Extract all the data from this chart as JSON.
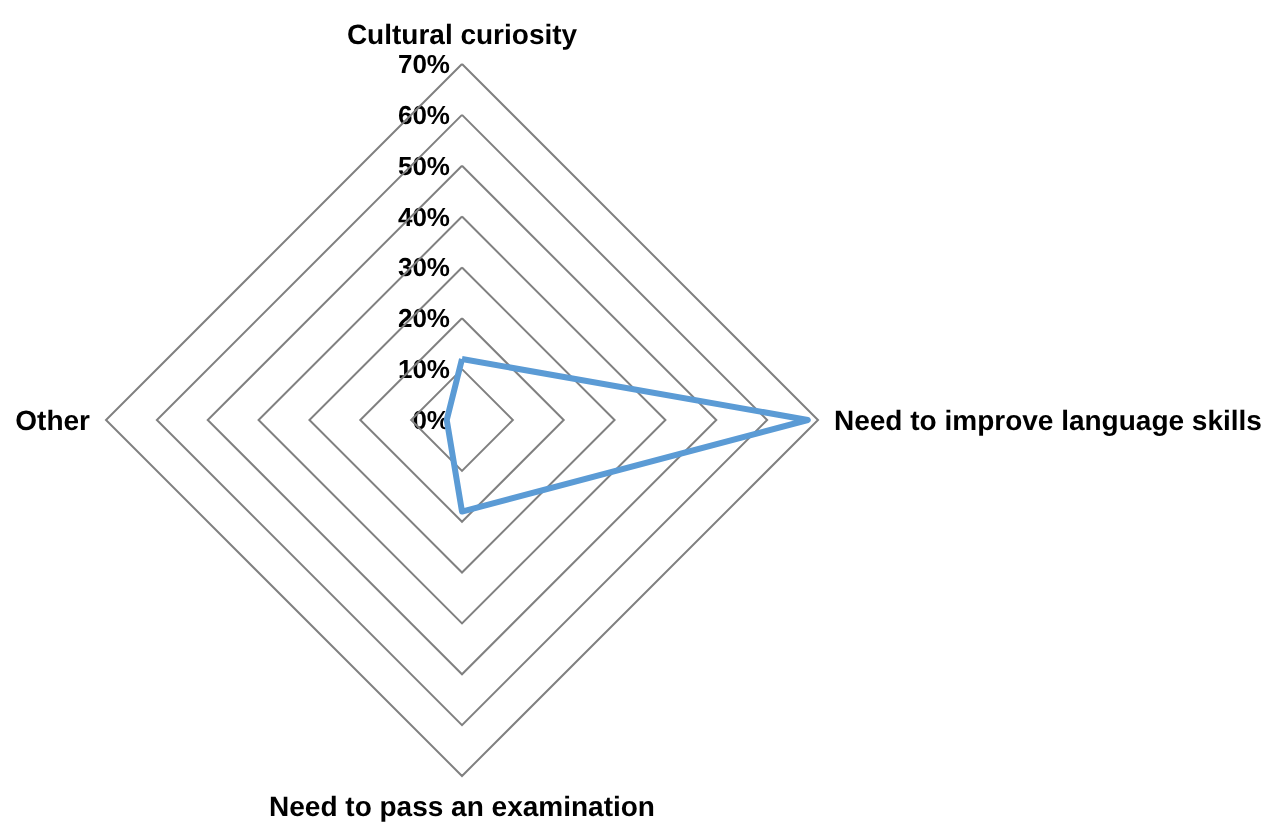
{
  "chart_data": {
    "type": "radar",
    "categories": [
      "Cultural curiosity",
      "Need to improve language skills",
      "Need to pass an examination",
      "Other"
    ],
    "series": [
      {
        "color": "#5b9bd5",
        "values": [
          12,
          68,
          18,
          3
        ]
      }
    ],
    "ylim": [
      0,
      70
    ],
    "yticks": [
      {
        "value": 0,
        "label": "0%"
      },
      {
        "value": 10,
        "label": "10%"
      },
      {
        "value": 20,
        "label": "20%"
      },
      {
        "value": 30,
        "label": "30%"
      },
      {
        "value": 40,
        "label": "40%"
      },
      {
        "value": 50,
        "label": "50%"
      },
      {
        "value": 60,
        "label": "60%"
      },
      {
        "value": 70,
        "label": "70%"
      }
    ],
    "grid": true
  }
}
